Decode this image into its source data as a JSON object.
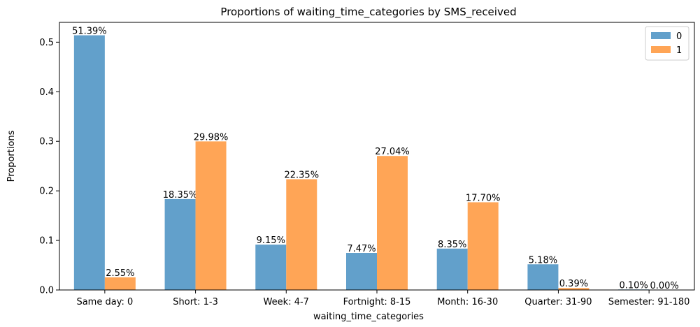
{
  "chart_data": {
    "type": "bar",
    "title": "Proportions of waiting_time_categories by SMS_received",
    "xlabel": "waiting_time_categories",
    "ylabel": "Proportions",
    "categories": [
      "Same day: 0",
      "Short: 1-3",
      "Week: 4-7",
      "Fortnight: 8-15",
      "Month: 16-30",
      "Quarter: 31-90",
      "Semester: 91-180"
    ],
    "series": [
      {
        "name": "0",
        "color": "#62a0cb",
        "values": [
          0.5139,
          0.1835,
          0.0915,
          0.0747,
          0.0835,
          0.0518,
          0.001
        ],
        "labels": [
          "51.39%",
          "18.35%",
          "9.15%",
          "7.47%",
          "8.35%",
          "5.18%",
          "0.10%"
        ]
      },
      {
        "name": "1",
        "color": "#ffa556",
        "values": [
          0.0255,
          0.2998,
          0.2235,
          0.2704,
          0.177,
          0.0039,
          0.0
        ],
        "labels": [
          "2.55%",
          "29.98%",
          "22.35%",
          "27.04%",
          "17.70%",
          "0.39%",
          "0.00%"
        ]
      }
    ],
    "ylim": [
      0,
      0.54
    ],
    "yticks": [
      0.0,
      0.1,
      0.2,
      0.3,
      0.4,
      0.5
    ],
    "ytick_labels": [
      "0.0",
      "0.1",
      "0.2",
      "0.3",
      "0.4",
      "0.5"
    ],
    "grid": false,
    "legend_position": "top-right"
  }
}
